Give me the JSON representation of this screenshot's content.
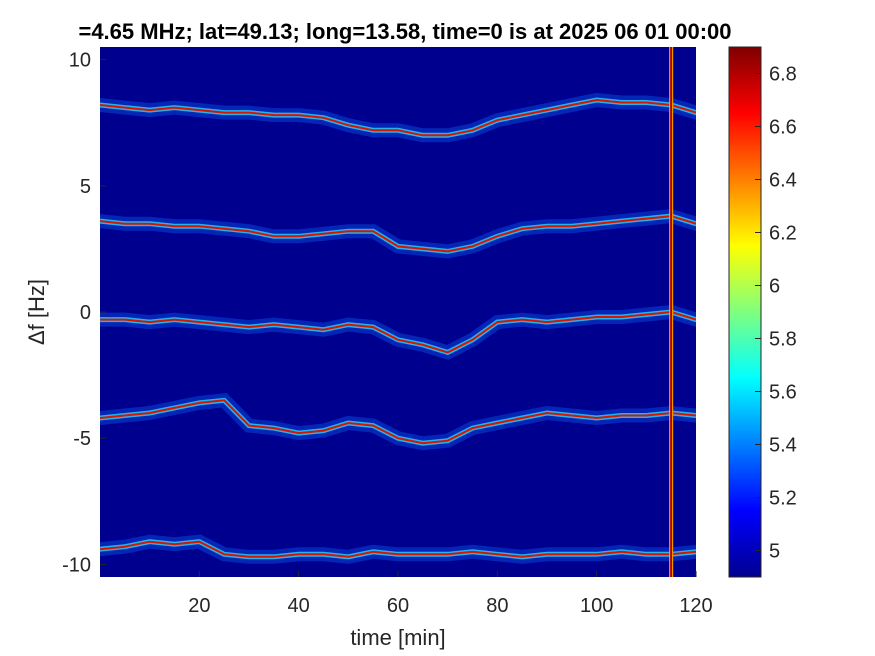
{
  "chart_data": {
    "type": "heatmap",
    "title": "=4.65 MHz;  lat=49.13; long=13.58, time=0 is at 2025 06 01 00:00",
    "xlabel": "time [min]",
    "ylabel": "Δf [Hz]",
    "xlim": [
      0,
      120
    ],
    "ylim": [
      -10.5,
      10.5
    ],
    "xticks": [
      20,
      40,
      60,
      80,
      100,
      120
    ],
    "yticks": [
      10,
      5,
      0,
      -5,
      -10
    ],
    "colorbar": {
      "range": [
        4.9,
        6.9
      ],
      "ticks": [
        6.8,
        6.6,
        6.4,
        6.2,
        6,
        5.8,
        5.6,
        5.4,
        5.2,
        5
      ],
      "colormap": "jet"
    },
    "background_color": "#00008f",
    "vertical_line_x": 115,
    "traces": [
      {
        "name_hidden": true,
        "points": [
          [
            0,
            8.2
          ],
          [
            5,
            8.1
          ],
          [
            10,
            8.0
          ],
          [
            15,
            8.1
          ],
          [
            20,
            8.0
          ],
          [
            25,
            7.9
          ],
          [
            30,
            7.9
          ],
          [
            35,
            7.8
          ],
          [
            40,
            7.8
          ],
          [
            45,
            7.7
          ],
          [
            50,
            7.4
          ],
          [
            55,
            7.2
          ],
          [
            60,
            7.2
          ],
          [
            65,
            7.0
          ],
          [
            70,
            7.0
          ],
          [
            75,
            7.2
          ],
          [
            80,
            7.6
          ],
          [
            85,
            7.8
          ],
          [
            90,
            8.0
          ],
          [
            95,
            8.2
          ],
          [
            100,
            8.4
          ],
          [
            105,
            8.3
          ],
          [
            110,
            8.3
          ],
          [
            115,
            8.2
          ],
          [
            120,
            7.9
          ]
        ]
      },
      {
        "name_hidden": true,
        "points": [
          [
            0,
            3.6
          ],
          [
            5,
            3.5
          ],
          [
            10,
            3.5
          ],
          [
            15,
            3.4
          ],
          [
            20,
            3.4
          ],
          [
            25,
            3.3
          ],
          [
            30,
            3.2
          ],
          [
            35,
            3.0
          ],
          [
            40,
            3.0
          ],
          [
            45,
            3.1
          ],
          [
            50,
            3.2
          ],
          [
            55,
            3.2
          ],
          [
            60,
            2.6
          ],
          [
            65,
            2.5
          ],
          [
            70,
            2.4
          ],
          [
            75,
            2.6
          ],
          [
            80,
            3.0
          ],
          [
            85,
            3.3
          ],
          [
            90,
            3.4
          ],
          [
            95,
            3.4
          ],
          [
            100,
            3.5
          ],
          [
            105,
            3.6
          ],
          [
            110,
            3.7
          ],
          [
            115,
            3.8
          ],
          [
            120,
            3.5
          ]
        ]
      },
      {
        "name_hidden": true,
        "points": [
          [
            0,
            -0.3
          ],
          [
            5,
            -0.3
          ],
          [
            10,
            -0.4
          ],
          [
            15,
            -0.3
          ],
          [
            20,
            -0.4
          ],
          [
            25,
            -0.5
          ],
          [
            30,
            -0.6
          ],
          [
            35,
            -0.5
          ],
          [
            40,
            -0.6
          ],
          [
            45,
            -0.7
          ],
          [
            50,
            -0.5
          ],
          [
            55,
            -0.6
          ],
          [
            60,
            -1.1
          ],
          [
            65,
            -1.3
          ],
          [
            70,
            -1.6
          ],
          [
            75,
            -1.1
          ],
          [
            80,
            -0.4
          ],
          [
            85,
            -0.3
          ],
          [
            90,
            -0.4
          ],
          [
            95,
            -0.3
          ],
          [
            100,
            -0.2
          ],
          [
            105,
            -0.2
          ],
          [
            110,
            -0.1
          ],
          [
            115,
            0.0
          ],
          [
            120,
            -0.3
          ]
        ]
      },
      {
        "name_hidden": true,
        "points": [
          [
            0,
            -4.2
          ],
          [
            5,
            -4.1
          ],
          [
            10,
            -4.0
          ],
          [
            15,
            -3.8
          ],
          [
            20,
            -3.6
          ],
          [
            25,
            -3.5
          ],
          [
            30,
            -4.5
          ],
          [
            35,
            -4.6
          ],
          [
            40,
            -4.8
          ],
          [
            45,
            -4.7
          ],
          [
            50,
            -4.4
          ],
          [
            55,
            -4.5
          ],
          [
            60,
            -5.0
          ],
          [
            65,
            -5.2
          ],
          [
            70,
            -5.1
          ],
          [
            75,
            -4.6
          ],
          [
            80,
            -4.4
          ],
          [
            85,
            -4.2
          ],
          [
            90,
            -4.0
          ],
          [
            95,
            -4.1
          ],
          [
            100,
            -4.2
          ],
          [
            105,
            -4.1
          ],
          [
            110,
            -4.1
          ],
          [
            115,
            -4.0
          ],
          [
            120,
            -4.1
          ]
        ]
      },
      {
        "name_hidden": true,
        "points": [
          [
            0,
            -9.4
          ],
          [
            5,
            -9.3
          ],
          [
            10,
            -9.1
          ],
          [
            15,
            -9.2
          ],
          [
            20,
            -9.1
          ],
          [
            25,
            -9.6
          ],
          [
            30,
            -9.7
          ],
          [
            35,
            -9.7
          ],
          [
            40,
            -9.6
          ],
          [
            45,
            -9.6
          ],
          [
            50,
            -9.7
          ],
          [
            55,
            -9.5
          ],
          [
            60,
            -9.6
          ],
          [
            65,
            -9.6
          ],
          [
            70,
            -9.6
          ],
          [
            75,
            -9.5
          ],
          [
            80,
            -9.6
          ],
          [
            85,
            -9.7
          ],
          [
            90,
            -9.6
          ],
          [
            95,
            -9.6
          ],
          [
            100,
            -9.6
          ],
          [
            105,
            -9.5
          ],
          [
            110,
            -9.6
          ],
          [
            115,
            -9.6
          ],
          [
            120,
            -9.5
          ]
        ]
      }
    ]
  }
}
